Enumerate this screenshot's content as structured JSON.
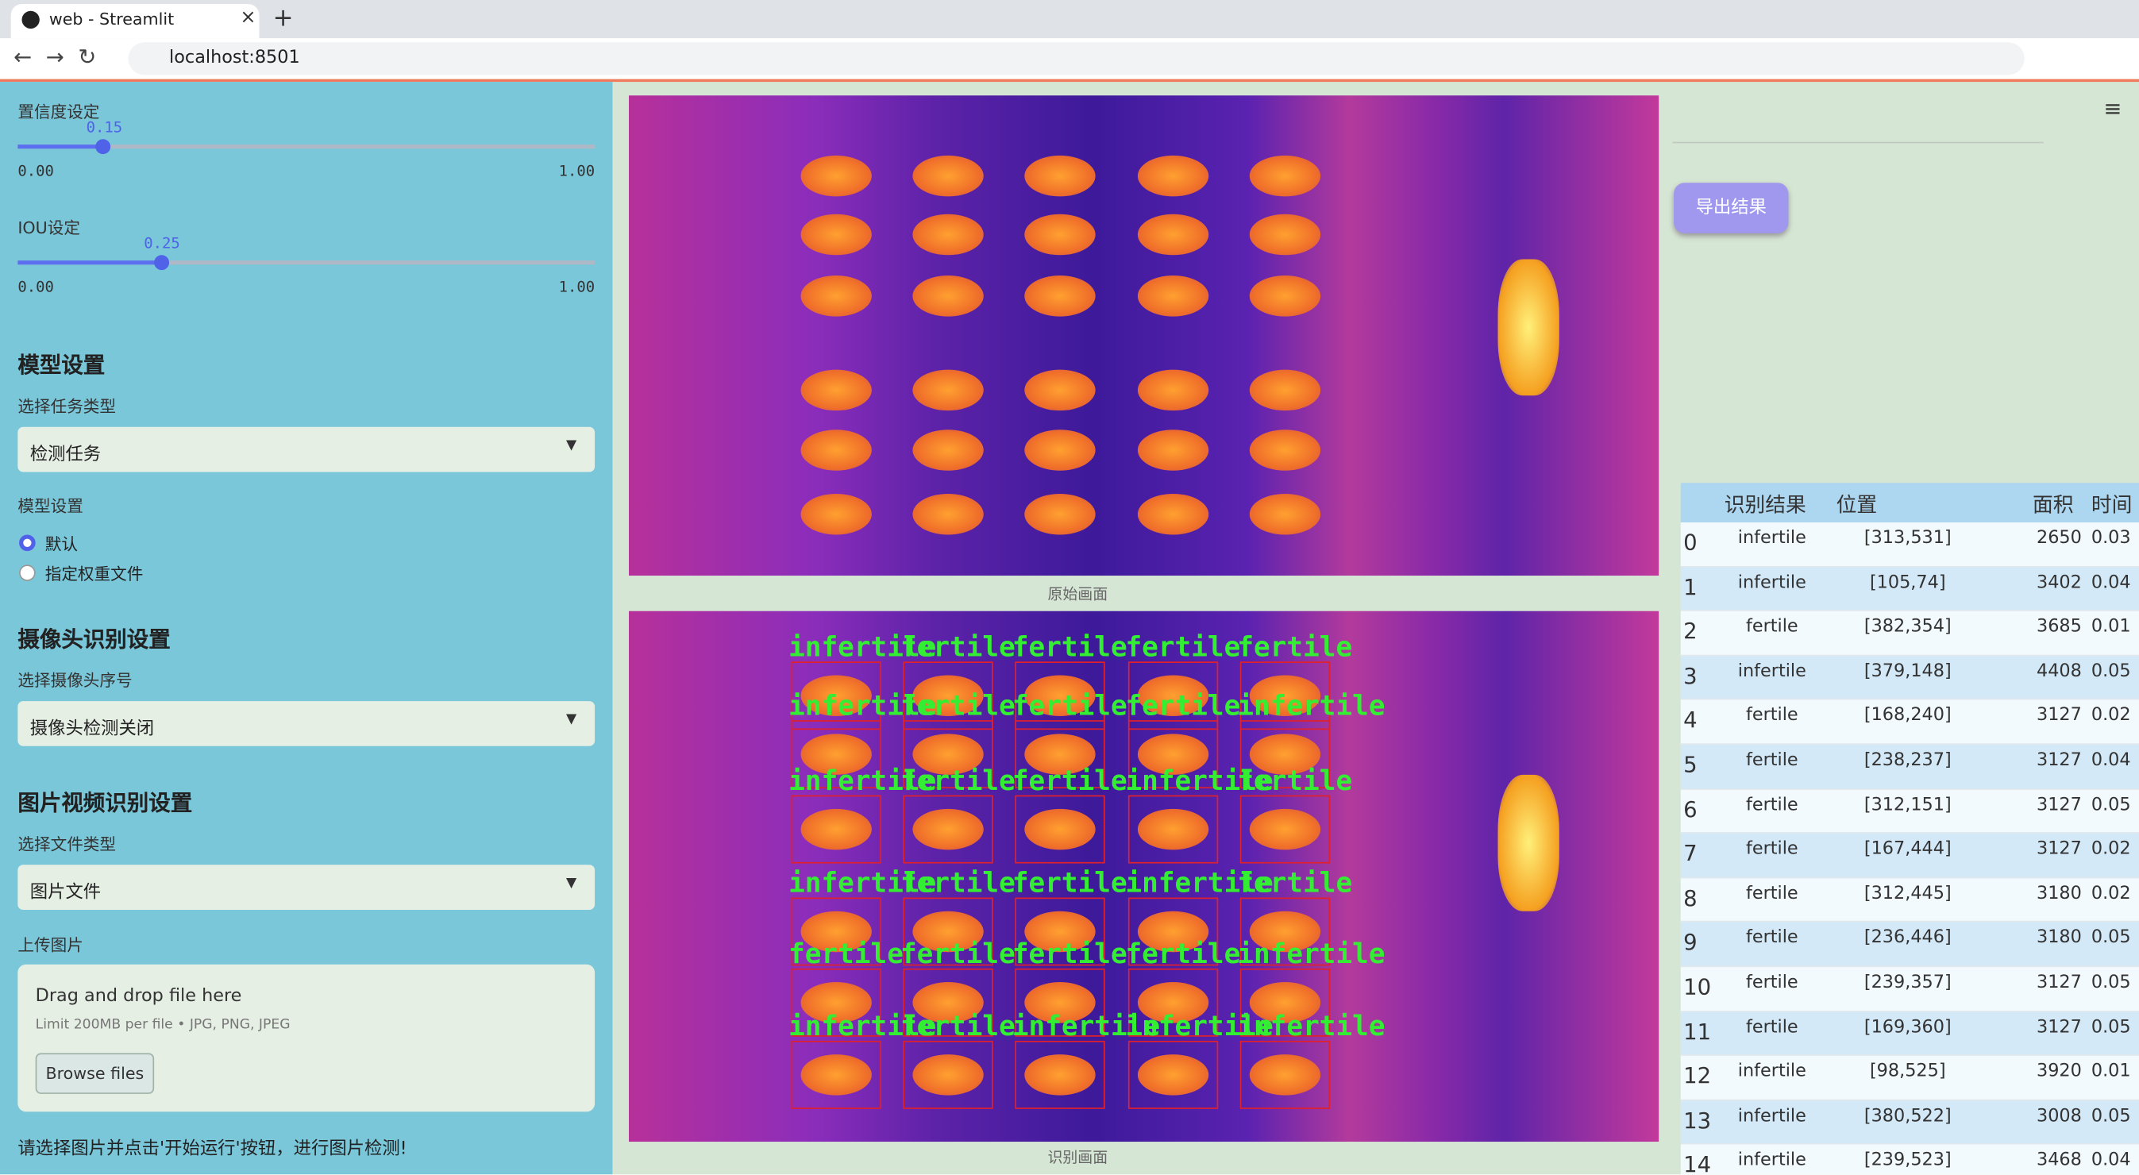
{
  "browser": {
    "tab_title": "web - Streamlit",
    "url": "localhost:8501"
  },
  "sidebar": {
    "confidence": {
      "label": "置信度设定",
      "value": "0.15",
      "min": "0.00",
      "max": "1.00"
    },
    "iou": {
      "label": "IOU设定",
      "value": "0.25",
      "min": "0.00",
      "max": "1.00"
    },
    "model_section": "模型设置",
    "task_label": "选择任务类型",
    "task_value": "检测任务",
    "model_label": "模型设置",
    "radio": [
      "默认",
      "指定权重文件"
    ],
    "camera_section": "摄像头识别设置",
    "camera_label": "选择摄像头序号",
    "camera_value": "摄像头检测关闭",
    "media_section": "图片视频识别设置",
    "file_type_label": "选择文件类型",
    "file_type_value": "图片文件",
    "upload_label": "上传图片",
    "drop_text": "Drag and drop file here",
    "limit_text": "Limit 200MB per file • JPG, PNG, JPEG",
    "browse": "Browse files",
    "hint": "请选择图片并点击'开始运行'按钮，进行图片检测!"
  },
  "main": {
    "original_caption": "原始画面",
    "result_caption": "识别画面",
    "export": "导出结果",
    "detections": [
      [
        "infertile",
        "fertile",
        "fertile",
        "fertile",
        "fertile"
      ],
      [
        "infertile",
        "fertile",
        "fertile",
        "fertile",
        "infertile"
      ],
      [
        "infertile",
        "fertile",
        "fertile",
        "infertile",
        "fertile"
      ],
      [
        "infertile",
        "fertile",
        "fertile",
        "infertile",
        "fertile"
      ],
      [
        "fertile",
        "fertile",
        "fertile",
        "fertile",
        "infertile"
      ],
      [
        "infertile",
        "fertile",
        "infertile",
        "infertile",
        "infertile"
      ]
    ],
    "table": {
      "headers": [
        "识别结果",
        "位置",
        "面积",
        "时间"
      ],
      "rows": [
        [
          "0",
          "infertile",
          "[313,531]",
          "2650",
          "0.03"
        ],
        [
          "1",
          "infertile",
          "[105,74]",
          "3402",
          "0.04"
        ],
        [
          "2",
          "fertile",
          "[382,354]",
          "3685",
          "0.01"
        ],
        [
          "3",
          "infertile",
          "[379,148]",
          "4408",
          "0.05"
        ],
        [
          "4",
          "fertile",
          "[168,240]",
          "3127",
          "0.02"
        ],
        [
          "5",
          "fertile",
          "[238,237]",
          "3127",
          "0.04"
        ],
        [
          "6",
          "fertile",
          "[312,151]",
          "3127",
          "0.05"
        ],
        [
          "7",
          "fertile",
          "[167,444]",
          "3127",
          "0.02"
        ],
        [
          "8",
          "fertile",
          "[312,445]",
          "3180",
          "0.02"
        ],
        [
          "9",
          "fertile",
          "[236,446]",
          "3180",
          "0.05"
        ],
        [
          "10",
          "fertile",
          "[239,357]",
          "3127",
          "0.05"
        ],
        [
          "11",
          "fertile",
          "[169,360]",
          "3127",
          "0.05"
        ],
        [
          "12",
          "infertile",
          "[98,525]",
          "3920",
          "0.01"
        ],
        [
          "13",
          "infertile",
          "[380,522]",
          "3008",
          "0.05"
        ],
        [
          "14",
          "infertile",
          "[239,523]",
          "3468",
          "0.04"
        ]
      ]
    }
  }
}
